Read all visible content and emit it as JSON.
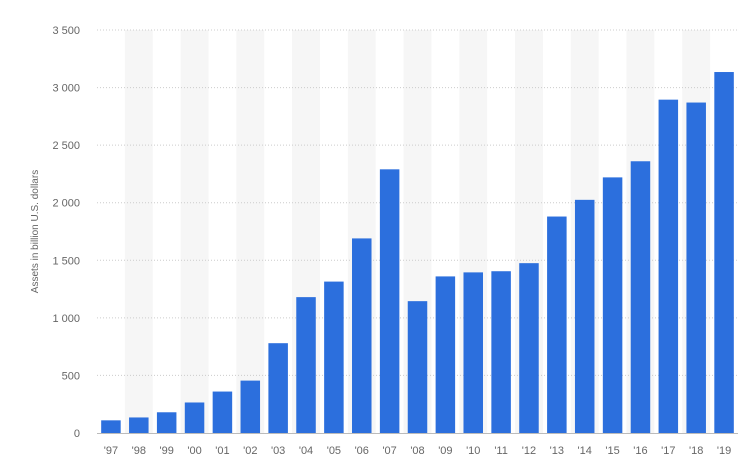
{
  "chart_data": {
    "type": "bar",
    "title": "",
    "xlabel": "",
    "ylabel": "Assets in billion U.S. dollars",
    "categories": [
      "'97",
      "'98",
      "'99",
      "'00",
      "'01",
      "'02",
      "'03",
      "'04",
      "'05",
      "'06",
      "'07",
      "'08",
      "'09",
      "'10",
      "'11",
      "'12",
      "'13",
      "'14",
      "'15",
      "'16",
      "'17",
      "'18",
      "'19"
    ],
    "values": [
      110,
      135,
      180,
      265,
      360,
      455,
      780,
      1180,
      1315,
      1690,
      2290,
      1145,
      1360,
      1395,
      1405,
      1475,
      1880,
      2025,
      2220,
      2360,
      2895,
      2870,
      3135
    ],
    "ylim": [
      0,
      3500
    ],
    "yticks": [
      0,
      500,
      1000,
      1500,
      2000,
      2500,
      3000,
      3500
    ],
    "ytick_labels": [
      "0",
      "500",
      "1 000",
      "1 500",
      "2 000",
      "2 500",
      "3 000",
      "3 500"
    ],
    "grid": true,
    "legend": "none",
    "bar_color": "#2c6fdd",
    "band_color": "#f6f6f6",
    "grid_color": "#cccccc",
    "axis_line_color": "#bbbbbb",
    "label_color": "#666666"
  }
}
